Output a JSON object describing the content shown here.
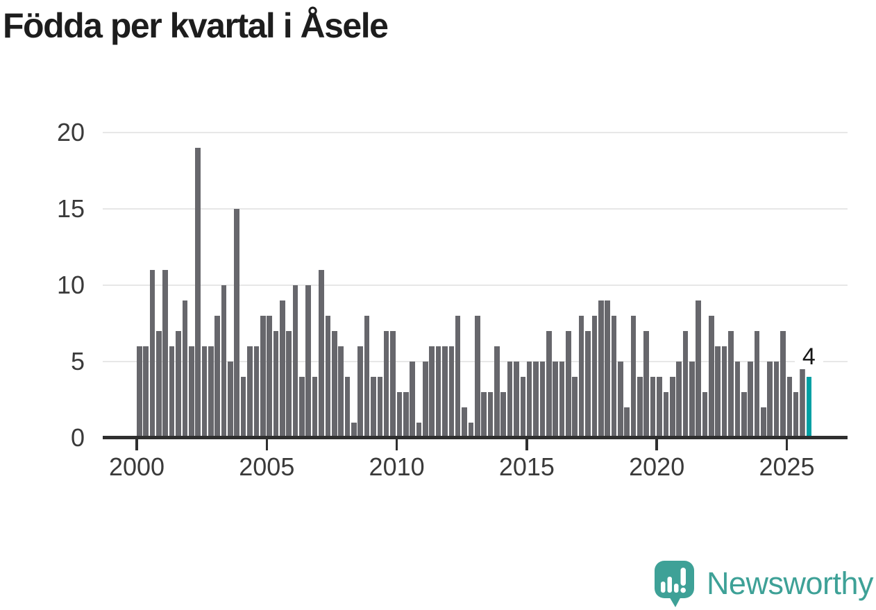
{
  "page": {
    "background": "#ffffff"
  },
  "chart_data": {
    "type": "bar",
    "title": "Födda per kvartal i Åsele",
    "x_period_start": "2000 Q1",
    "x_period_end": "2025 Q4",
    "x_tick_labels": [
      "2000",
      "2005",
      "2010",
      "2015",
      "2020",
      "2025"
    ],
    "y_ticks": [
      0,
      5,
      10,
      15,
      20
    ],
    "ylim": [
      0,
      20
    ],
    "grid": "horizontal",
    "legend": "none",
    "values": [
      6,
      6,
      11,
      7,
      11,
      6,
      7,
      9,
      6,
      19,
      6,
      6,
      8,
      10,
      5,
      15,
      4,
      6,
      6,
      8,
      8,
      7,
      9,
      7,
      10,
      4,
      10,
      4,
      11,
      8,
      7,
      6,
      4,
      1,
      6,
      8,
      4,
      4,
      7,
      7,
      3,
      3,
      5,
      1,
      5,
      6,
      6,
      6,
      6,
      8,
      2,
      1,
      8,
      3,
      3,
      6,
      3,
      5,
      5,
      4,
      5,
      5,
      5,
      7,
      5,
      5,
      7,
      4,
      8,
      7,
      8,
      9,
      9,
      8,
      5,
      2,
      8,
      4,
      7,
      4,
      4,
      3,
      4,
      5,
      7,
      5,
      9,
      3,
      8,
      6,
      6,
      7,
      5,
      3,
      5,
      7,
      2,
      5,
      5,
      7,
      4,
      3,
      6,
      4
    ],
    "highlight_index": 103,
    "torn_index": 102,
    "last_value_label": "4",
    "colors": {
      "bar": "#67676c",
      "highlight": "#00a0a4",
      "gridline": "#e7e7e7",
      "axis": "#2f2f2f",
      "tick_label": "#3a3a3a",
      "title": "#1d1d1d",
      "value_label_text": "#161616",
      "value_label_bg": "#ffffff"
    }
  },
  "footer": {
    "brand": "Newsworthy",
    "logo_color": "#3ea197"
  }
}
